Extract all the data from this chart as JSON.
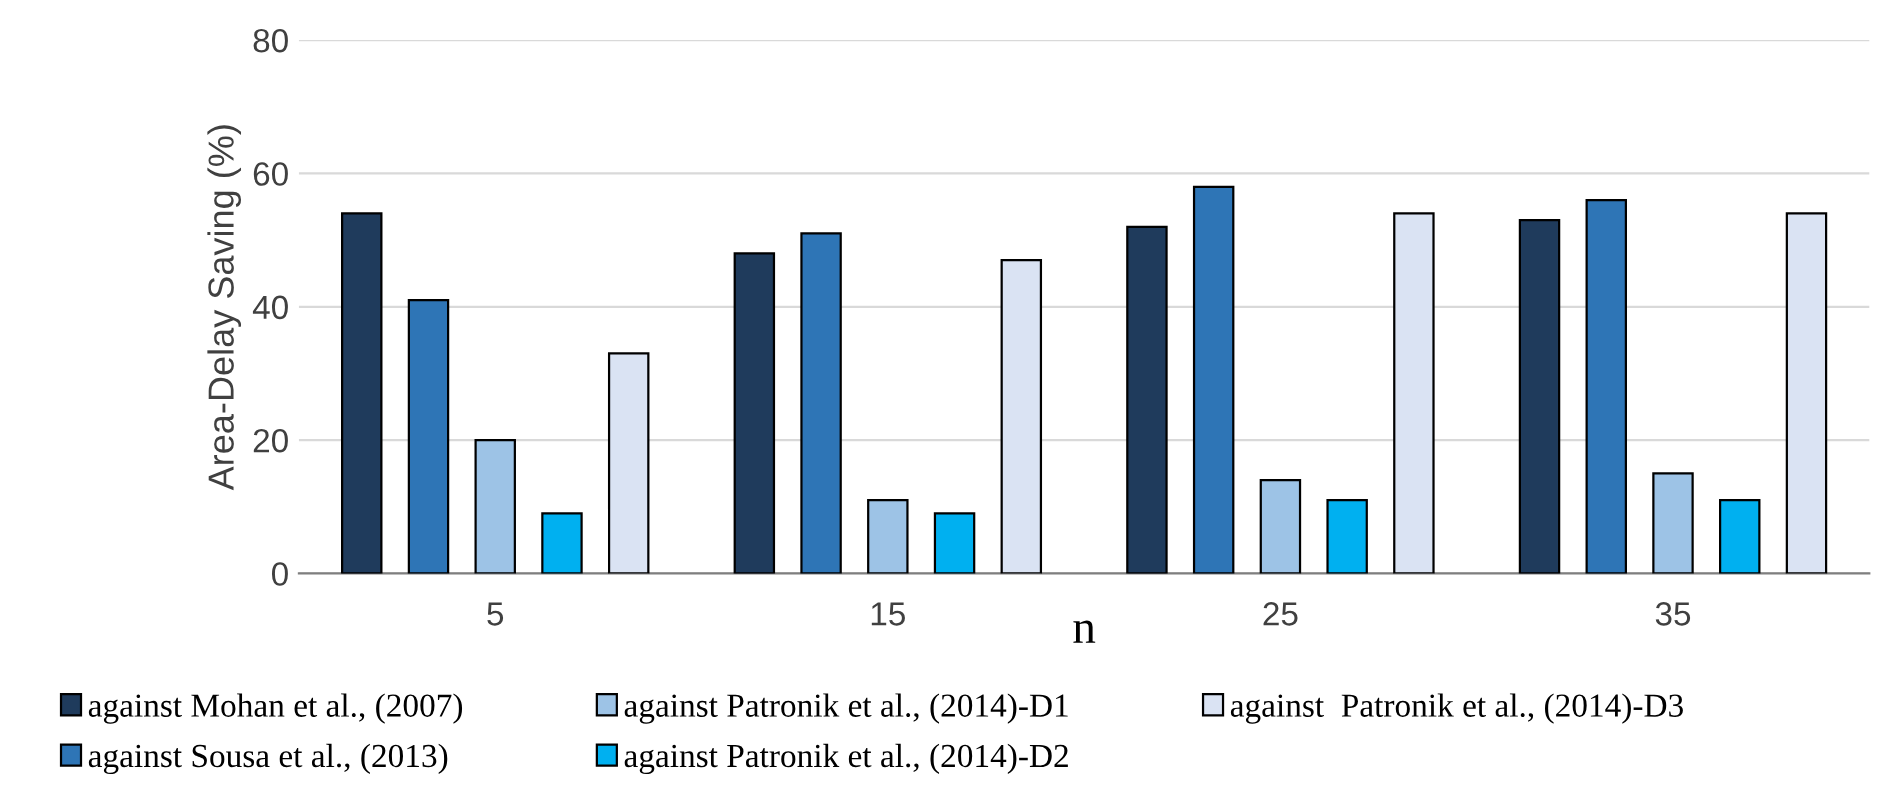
{
  "chart_data": {
    "type": "bar",
    "xlabel": "n",
    "ylabel": "Area-Delay Saving (%)",
    "categories": [
      "5",
      "15",
      "25",
      "35"
    ],
    "series": [
      {
        "name": "against Mohan et al., (2007)",
        "color": "#1f3b5c",
        "values": [
          54,
          48,
          52,
          53
        ]
      },
      {
        "name": "against Sousa et al., (2013)",
        "color": "#2e75b6",
        "values": [
          41,
          51,
          58,
          56
        ]
      },
      {
        "name": "against Patronik et al., (2014)-D1",
        "color": "#9dc3e6",
        "values": [
          20,
          11,
          14,
          15
        ]
      },
      {
        "name": "against Patronik et al., (2014)-D2",
        "color": "#00b0f0",
        "values": [
          9,
          9,
          11,
          11
        ]
      },
      {
        "name": "against  Patronik et al., (2014)-D3",
        "color": "#dae3f3",
        "values": [
          33,
          47,
          54,
          54
        ]
      }
    ],
    "ylim": [
      0,
      80
    ],
    "yticks": [
      0,
      20,
      40,
      60,
      80
    ],
    "grid": "y",
    "legend": "bottom"
  }
}
